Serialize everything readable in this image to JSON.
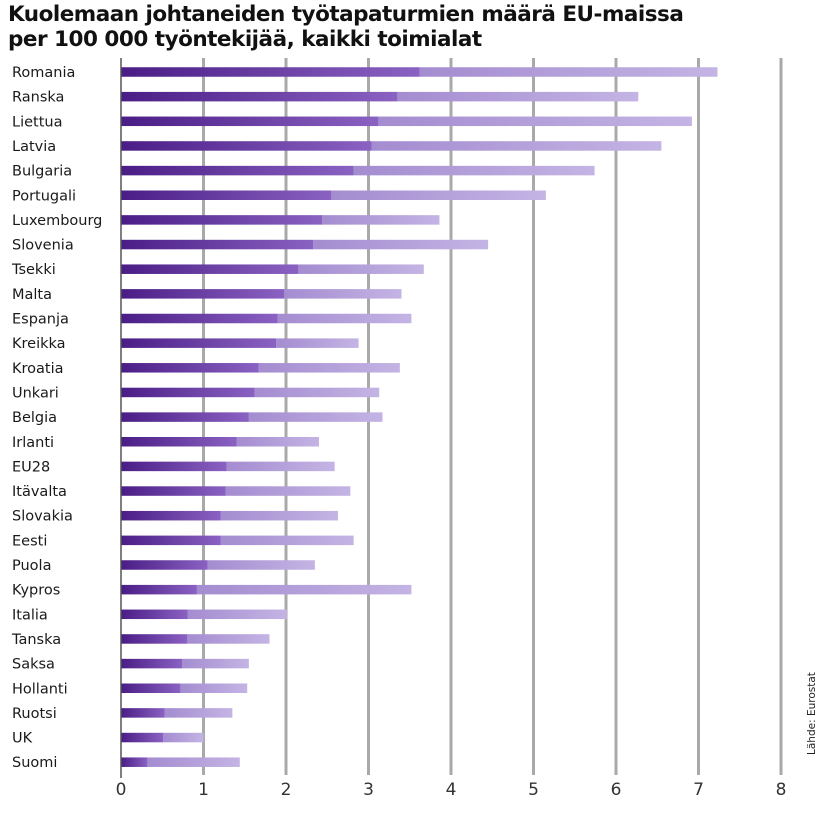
{
  "chart_data": {
    "type": "bar",
    "orientation": "horizontal",
    "stacked": true,
    "title_lines": [
      "Kuolemaan johtaneiden työtapaturmien määrä EU-maissa",
      "per 100 000 työntekijää, kaikki toimialat"
    ],
    "source": "Lähde: Eurostat",
    "xlim": [
      0,
      8
    ],
    "xticks": [
      "0",
      "1",
      "2",
      "3",
      "4",
      "5",
      "6",
      "7",
      "8"
    ],
    "grid": true,
    "colors": {
      "dark_start": "#4a1d86",
      "dark_end": "#8a62c2",
      "light_start": "#a48cd0",
      "light_end": "#c4b4e4",
      "gridline": "#a9a9a9",
      "axis": "#555555"
    },
    "categories": [
      "Romania",
      "Ranska",
      "Liettua",
      "Latvia",
      "Bulgaria",
      "Portugali",
      "Luxembourg",
      "Slovenia",
      "Tsekki",
      "Malta",
      "Espanja",
      "Kreikka",
      "Kroatia",
      "Unkari",
      "Belgia",
      "Irlanti",
      "EU28",
      "Itävalta",
      "Slovakia",
      "Eesti",
      "Puola",
      "Kypros",
      "Italia",
      "Tanska",
      "Saksa",
      "Hollanti",
      "Ruotsi",
      "UK",
      "Suomi"
    ],
    "series": [
      {
        "values": [
          3.62,
          3.35,
          3.12,
          3.04,
          2.82,
          2.55,
          2.44,
          2.33,
          2.15,
          1.98,
          1.9,
          1.88,
          1.67,
          1.62,
          1.55,
          1.4,
          1.28,
          1.27,
          1.21,
          1.21,
          1.05,
          0.92,
          0.81,
          0.8,
          0.74,
          0.72,
          0.53,
          0.51,
          0.32
        ]
      },
      {
        "values": [
          3.61,
          2.92,
          3.8,
          3.51,
          2.92,
          2.6,
          1.42,
          2.12,
          1.52,
          1.42,
          1.62,
          1.0,
          1.71,
          1.51,
          1.62,
          1.0,
          1.31,
          1.51,
          1.42,
          1.61,
          1.3,
          2.6,
          1.2,
          1.0,
          0.81,
          0.81,
          0.82,
          0.49,
          1.12
        ]
      }
    ]
  }
}
